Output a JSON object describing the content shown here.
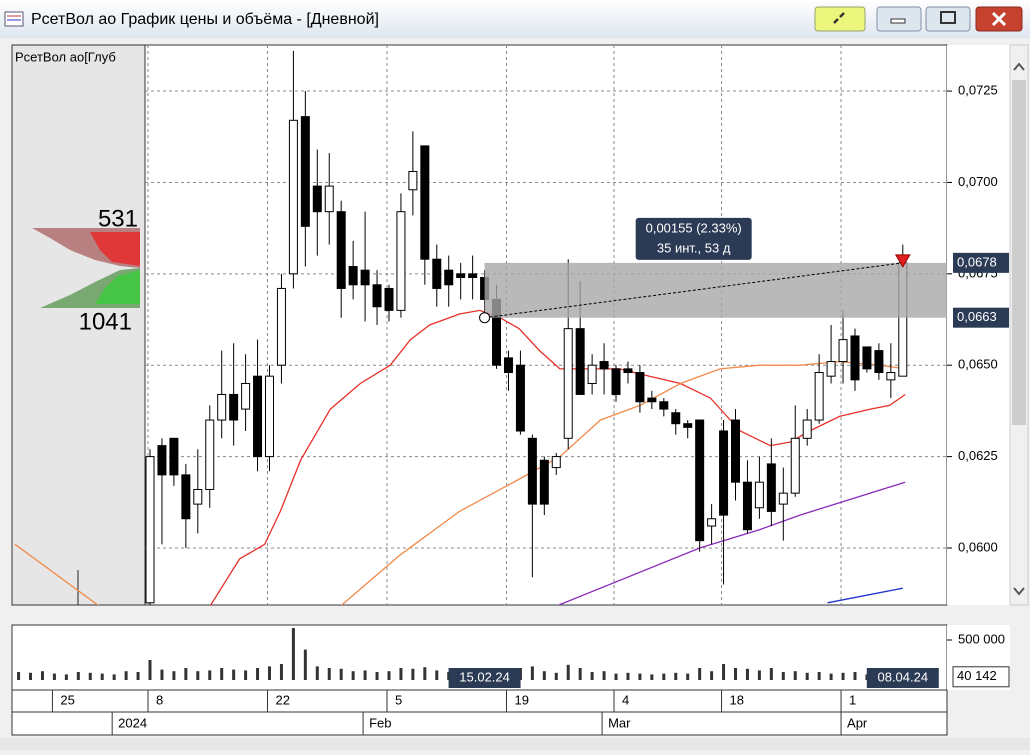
{
  "window": {
    "title": "РсетВол ао График цены и объёма - [Дневной]"
  },
  "chart_data": {
    "type": "candlestick",
    "open": [
      0.0585,
      0.0628,
      0.063,
      0.062,
      0.0612,
      0.0616,
      0.0635,
      0.0642,
      0.0638,
      0.0647,
      0.0625,
      0.065,
      0.0675,
      0.0718,
      0.0699,
      0.0692,
      0.0692,
      0.0677,
      0.0676,
      0.0672,
      0.0671,
      0.0665,
      0.0698,
      0.071,
      0.0679,
      0.0676,
      0.0675,
      0.0675,
      0.0674,
      0.0668,
      0.0652,
      0.065,
      0.063,
      0.0624,
      0.0622,
      0.063,
      0.066,
      0.0645,
      0.0651,
      0.0649,
      0.0649,
      0.0648,
      0.0641,
      0.064,
      0.0637,
      0.0634,
      0.0635,
      0.0606,
      0.0632,
      0.0635,
      0.0618,
      0.0611,
      0.0623,
      0.0612,
      0.0615,
      0.063,
      0.0635,
      0.0647,
      0.0651,
      0.0658,
      0.0655,
      0.0654,
      0.0646,
      0.0647
    ],
    "high": [
      0.0627,
      0.063,
      0.063,
      0.0623,
      0.0627,
      0.0639,
      0.0654,
      0.0656,
      0.0653,
      0.0657,
      0.065,
      0.0675,
      0.0736,
      0.0725,
      0.0709,
      0.0708,
      0.0695,
      0.0684,
      0.0692,
      0.0676,
      0.0672,
      0.0697,
      0.0714,
      0.071,
      0.0683,
      0.068,
      0.0678,
      0.068,
      0.0676,
      0.0672,
      0.0654,
      0.0654,
      0.0631,
      0.0625,
      0.0626,
      0.0679,
      0.0673,
      0.0653,
      0.0656,
      0.065,
      0.0651,
      0.065,
      0.0643,
      0.0641,
      0.0638,
      0.0635,
      0.0635,
      0.0612,
      0.0635,
      0.0638,
      0.0624,
      0.0625,
      0.063,
      0.0622,
      0.0639,
      0.0638,
      0.0653,
      0.0661,
      0.0665,
      0.066,
      0.0655,
      0.0656,
      0.0656,
      0.0683
    ],
    "low": [
      0.0584,
      0.0601,
      0.0617,
      0.06,
      0.0604,
      0.0611,
      0.063,
      0.0628,
      0.0632,
      0.0621,
      0.0621,
      0.0645,
      0.0671,
      0.0677,
      0.068,
      0.0683,
      0.0663,
      0.0668,
      0.0662,
      0.0661,
      0.0662,
      0.0663,
      0.0691,
      0.0672,
      0.0666,
      0.0666,
      0.0668,
      0.0668,
      0.0664,
      0.0649,
      0.0643,
      0.0631,
      0.0592,
      0.0609,
      0.062,
      0.0627,
      0.0642,
      0.0642,
      0.0642,
      0.064,
      0.0645,
      0.0637,
      0.0638,
      0.0636,
      0.0631,
      0.063,
      0.0599,
      0.0601,
      0.059,
      0.0613,
      0.0604,
      0.0608,
      0.0606,
      0.0602,
      0.0614,
      0.0628,
      0.0634,
      0.0645,
      0.0645,
      0.0643,
      0.0648,
      0.0646,
      0.0641,
      0.0647
    ],
    "close": [
      0.0625,
      0.062,
      0.062,
      0.0608,
      0.0616,
      0.0635,
      0.0642,
      0.0635,
      0.0645,
      0.0625,
      0.0647,
      0.0671,
      0.0717,
      0.0688,
      0.0692,
      0.0699,
      0.0671,
      0.0672,
      0.0672,
      0.0666,
      0.0665,
      0.0692,
      0.0703,
      0.0679,
      0.0671,
      0.0672,
      0.0674,
      0.0674,
      0.0668,
      0.065,
      0.0648,
      0.0632,
      0.0612,
      0.0612,
      0.0625,
      0.066,
      0.0642,
      0.065,
      0.0649,
      0.0642,
      0.0648,
      0.064,
      0.064,
      0.0638,
      0.0634,
      0.0633,
      0.0602,
      0.0608,
      0.0609,
      0.0618,
      0.0605,
      0.0618,
      0.061,
      0.0615,
      0.063,
      0.0635,
      0.0648,
      0.0651,
      0.0657,
      0.0646,
      0.0649,
      0.0648,
      0.0648,
      0.0678
    ],
    "xlim": [
      -11.55,
      66.7
    ],
    "ylim": [
      0.05844,
      0.07376
    ],
    "yticks": [
      {
        "value": 0.06,
        "label": "0,0600"
      },
      {
        "value": 0.0625,
        "label": "0,0625"
      },
      {
        "value": 0.065,
        "label": "0,0650"
      },
      {
        "value": 0.0675,
        "label": "0,0675"
      },
      {
        "value": 0.07,
        "label": "0,0700"
      },
      {
        "value": 0.0725,
        "label": "0,0725"
      }
    ],
    "xticks": [
      {
        "value": -8,
        "label": "25"
      },
      {
        "value": 0,
        "label": "8"
      },
      {
        "value": 10,
        "label": "22"
      },
      {
        "value": 20,
        "label": "5"
      },
      {
        "value": 30,
        "label": "19"
      },
      {
        "value": 39,
        "label": "4"
      },
      {
        "value": 48,
        "label": "18"
      },
      {
        "value": 58,
        "label": "1"
      }
    ],
    "month_ticks": [
      {
        "value": -3,
        "label": "2024"
      },
      {
        "value": 18,
        "label": "Feb"
      },
      {
        "value": 38,
        "label": "Mar"
      },
      {
        "value": 58,
        "label": "Apr"
      }
    ],
    "grid": true,
    "up_color": "#ffffff",
    "down_color": "#000000",
    "overlays": [
      {
        "color": "#e8312a",
        "x": [
          5.0,
          7.5,
          9.6,
          10.9,
          12.6,
          15.1,
          17.6,
          20.1,
          21.8,
          23.4,
          25.9,
          27.6,
          29.3,
          30.9,
          32.6,
          34.3,
          36.0,
          39.3,
          41.8,
          44.4,
          46.9,
          49.4,
          51.9,
          53.6,
          55.2,
          57.7,
          60.3,
          61.9,
          63.2
        ],
        "values": [
          0.0584,
          0.0597,
          0.0601,
          0.061,
          0.0624,
          0.0638,
          0.0645,
          0.065,
          0.0657,
          0.0661,
          0.0664,
          0.0665,
          0.0663,
          0.066,
          0.0654,
          0.0649,
          0.0649,
          0.0649,
          0.0647,
          0.0645,
          0.0641,
          0.0632,
          0.0628,
          0.0629,
          0.0632,
          0.0636,
          0.0638,
          0.0639,
          0.0642
        ]
      },
      {
        "color": "#f08a4b",
        "x": [
          -11.3,
          -4.2,
          null,
          15.9,
          20.9,
          25.9,
          31.0,
          34.3,
          37.7,
          41.0,
          44.4,
          47.7,
          51.0,
          54.4,
          57.7,
          61.1,
          63.2
        ],
        "values": [
          0.0601,
          0.0584,
          null,
          0.0584,
          0.0598,
          0.061,
          0.0619,
          0.0625,
          0.0635,
          0.0639,
          0.0645,
          0.0649,
          0.065,
          0.065,
          0.0651,
          0.065,
          0.0649
        ]
      },
      {
        "color": "#8a2bb8",
        "x": [
          33.9,
          46.0,
          51.0,
          54.4,
          63.2
        ],
        "values": [
          0.0584,
          0.06,
          0.0605,
          0.0609,
          0.0618
        ]
      },
      {
        "color": "#2233cc",
        "x": [
          56.7,
          63.0
        ],
        "values": [
          0.0585,
          0.0589
        ]
      }
    ],
    "price_markers": [
      {
        "value": 0.0678,
        "label": "0,0678"
      },
      {
        "value": 0.0663,
        "label": "0,0663"
      }
    ],
    "date_labels": [
      {
        "value": 28,
        "label": "15.02.24"
      },
      {
        "value": 63,
        "label": "08.04.24"
      }
    ],
    "measurement": {
      "from": {
        "x": 28,
        "y": 0.0663
      },
      "to": {
        "x": 63,
        "y": 0.0678
      },
      "text": [
        "0,00155 (2.33%)",
        "35 инт., 53 д"
      ]
    },
    "volume": {
      "x": [
        -11,
        -10,
        -9,
        -8,
        -7,
        -6,
        -5,
        -4,
        -3,
        -2,
        -1,
        0,
        1,
        2,
        3,
        4,
        5,
        6,
        7,
        8,
        9,
        10,
        11,
        12,
        13,
        14,
        15,
        16,
        17,
        18,
        19,
        20,
        21,
        22,
        23,
        24,
        25,
        26,
        27,
        28,
        29,
        30,
        31,
        32,
        33,
        34,
        35,
        36,
        37,
        38,
        39,
        40,
        41,
        42,
        43,
        44,
        45,
        46,
        47,
        48,
        49,
        50,
        51,
        52,
        53,
        54,
        55,
        56,
        57,
        58,
        59,
        60,
        61,
        62,
        63
      ],
      "values": [
        100000,
        90000,
        110000,
        80000,
        70000,
        100000,
        90000,
        80000,
        70000,
        110000,
        100000,
        250000,
        130000,
        110000,
        150000,
        110000,
        120000,
        150000,
        130000,
        120000,
        150000,
        170000,
        200000,
        650000,
        380000,
        170000,
        150000,
        140000,
        110000,
        120000,
        100000,
        110000,
        150000,
        140000,
        160000,
        120000,
        100000,
        90000,
        100000,
        110000,
        130000,
        140000,
        150000,
        170000,
        110000,
        90000,
        190000,
        150000,
        100000,
        110000,
        80000,
        90000,
        80000,
        70000,
        80000,
        90000,
        80000,
        150000,
        110000,
        200000,
        150000,
        140000,
        120000,
        150000,
        100000,
        110000,
        90000,
        100000,
        80000,
        90000,
        100000,
        70000,
        80000,
        60000,
        40142
      ],
      "color": "#333333",
      "ylim": [
        0,
        650000
      ],
      "yticks": [
        {
          "value": 500000,
          "label": "500 000"
        }
      ],
      "marker": {
        "value": 40142,
        "label": "40 142"
      }
    },
    "profile": {
      "label": "РсетВол ао[Глуб",
      "ask_total": 531,
      "bid_total": 1041
    }
  }
}
